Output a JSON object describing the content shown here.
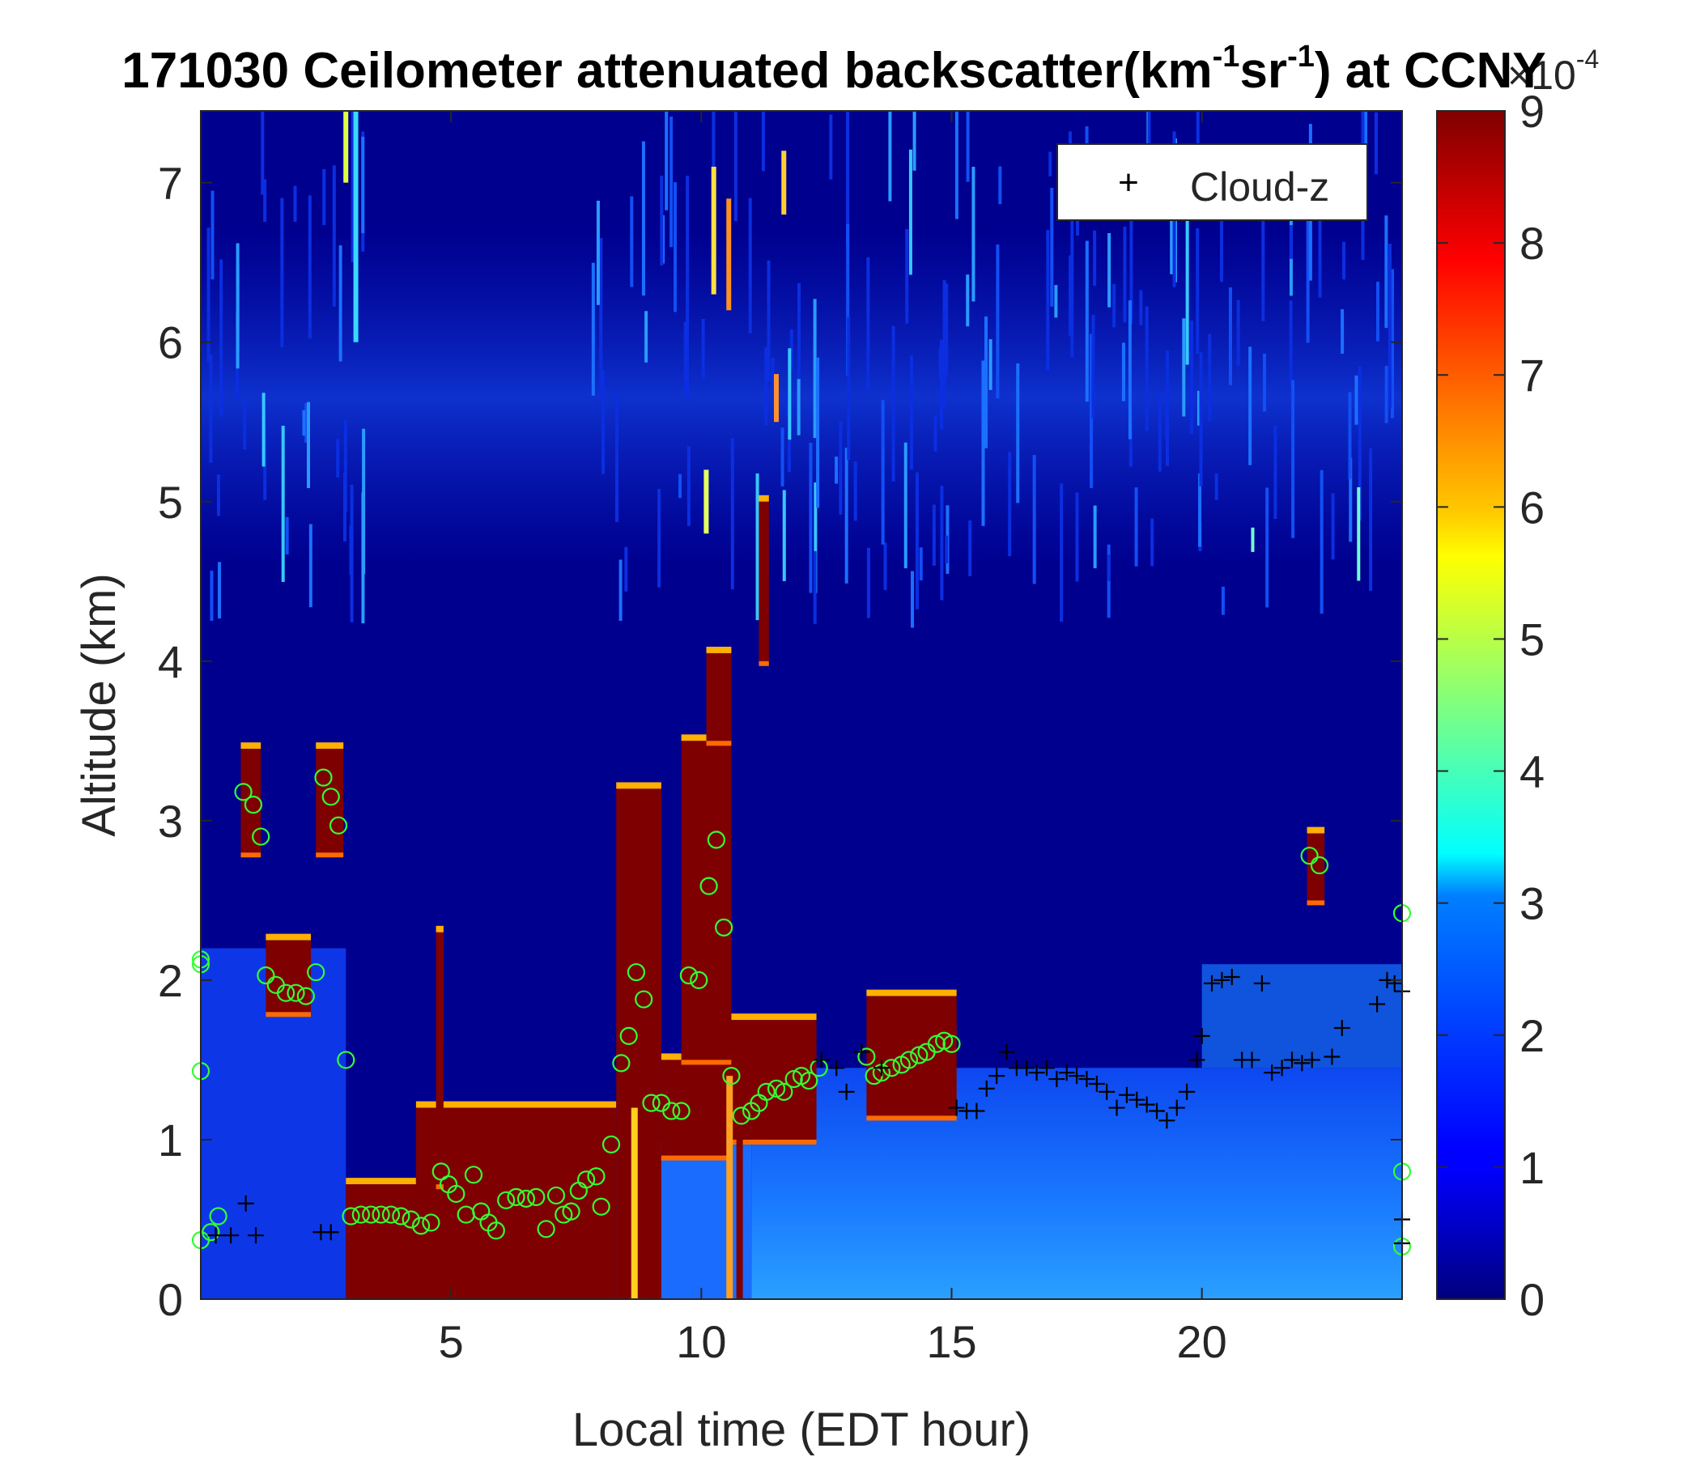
{
  "chart_data": {
    "type": "heatmap",
    "title": "171030 Ceilometer attenuated backscatter(km",
    "title_sup1": "-1",
    "title_mid": "sr",
    "title_sup2": "-1",
    "title_end": ") at CCNY",
    "xlabel": "Local time (EDT hour)",
    "ylabel": "Altitude (km)",
    "xlim": [
      0,
      24
    ],
    "ylim": [
      0,
      7.45
    ],
    "x_ticks": [
      5,
      10,
      15,
      20
    ],
    "x_tick_labels": [
      "5",
      "10",
      "15",
      "20"
    ],
    "y_ticks": [
      0,
      1,
      2,
      3,
      4,
      5,
      6,
      7
    ],
    "y_tick_labels": [
      "0",
      "1",
      "2",
      "3",
      "4",
      "5",
      "6",
      "7"
    ],
    "colorbar": {
      "colormap": "jet",
      "clim": [
        0,
        9
      ],
      "ticks": [
        0,
        1,
        2,
        3,
        4,
        5,
        6,
        7,
        8,
        9
      ],
      "tick_labels": [
        "0",
        "1",
        "2",
        "3",
        "4",
        "5",
        "6",
        "7",
        "8",
        "9"
      ],
      "multiplier": "×10",
      "multiplier_exp": "-4"
    },
    "legend": {
      "position": "top-right",
      "entries": [
        {
          "marker": "+",
          "label": "Cloud-z"
        }
      ]
    },
    "saturated_layers": [
      {
        "x": [
          0.8,
          1.2
        ],
        "bottom": 2.8,
        "top": 3.45
      },
      {
        "x": [
          1.3,
          2.2
        ],
        "bottom": 1.8,
        "top": 2.25
      },
      {
        "x": [
          2.3,
          2.85
        ],
        "bottom": 2.8,
        "top": 3.45
      },
      {
        "x": [
          2.9,
          4.3
        ],
        "bottom": 0.0,
        "top": 0.72
      },
      {
        "x": [
          4.3,
          8.3
        ],
        "bottom": 0.0,
        "top": 1.2
      },
      {
        "x": [
          4.7,
          4.85
        ],
        "bottom": 0.72,
        "top": 2.3
      },
      {
        "x": [
          8.3,
          9.2
        ],
        "bottom": 0.0,
        "top": 3.2
      },
      {
        "x": [
          9.2,
          10.6
        ],
        "bottom": 0.9,
        "top": 1.5
      },
      {
        "x": [
          9.6,
          10.6
        ],
        "bottom": 1.5,
        "top": 3.5
      },
      {
        "x": [
          10.1,
          10.6
        ],
        "bottom": 3.5,
        "top": 4.05
      },
      {
        "x": [
          11.15,
          11.35
        ],
        "bottom": 4.0,
        "top": 5.0
      },
      {
        "x": [
          10.6,
          12.3
        ],
        "bottom": 1.0,
        "top": 1.75
      },
      {
        "x": [
          13.3,
          15.1
        ],
        "bottom": 1.15,
        "top": 1.9
      },
      {
        "x": [
          22.1,
          22.45
        ],
        "bottom": 2.5,
        "top": 2.92
      }
    ],
    "cloud_z": [
      [
        0.3,
        0.4
      ],
      [
        0.6,
        0.4
      ],
      [
        0.9,
        0.6
      ],
      [
        1.1,
        0.4
      ],
      [
        2.4,
        0.42
      ],
      [
        2.6,
        0.42
      ],
      [
        12.4,
        1.5
      ],
      [
        12.7,
        1.45
      ],
      [
        12.9,
        1.3
      ],
      [
        13.2,
        1.55
      ],
      [
        13.6,
        1.45
      ],
      [
        15.1,
        1.2
      ],
      [
        15.3,
        1.18
      ],
      [
        15.5,
        1.18
      ],
      [
        15.7,
        1.32
      ],
      [
        15.9,
        1.4
      ],
      [
        16.1,
        1.55
      ],
      [
        16.3,
        1.45
      ],
      [
        16.5,
        1.45
      ],
      [
        16.7,
        1.42
      ],
      [
        16.9,
        1.45
      ],
      [
        17.1,
        1.38
      ],
      [
        17.3,
        1.42
      ],
      [
        17.5,
        1.4
      ],
      [
        17.7,
        1.38
      ],
      [
        17.9,
        1.35
      ],
      [
        18.1,
        1.3
      ],
      [
        18.3,
        1.2
      ],
      [
        18.5,
        1.28
      ],
      [
        18.7,
        1.25
      ],
      [
        18.9,
        1.22
      ],
      [
        19.1,
        1.18
      ],
      [
        19.3,
        1.12
      ],
      [
        19.5,
        1.2
      ],
      [
        19.7,
        1.3
      ],
      [
        19.9,
        1.5
      ],
      [
        20.0,
        1.65
      ],
      [
        20.2,
        1.98
      ],
      [
        20.4,
        2.0
      ],
      [
        20.6,
        2.02
      ],
      [
        20.8,
        1.5
      ],
      [
        21.0,
        1.5
      ],
      [
        21.2,
        1.98
      ],
      [
        21.4,
        1.42
      ],
      [
        21.6,
        1.45
      ],
      [
        21.8,
        1.5
      ],
      [
        22.0,
        1.48
      ],
      [
        22.2,
        1.5
      ],
      [
        22.6,
        1.52
      ],
      [
        22.8,
        1.7
      ],
      [
        23.5,
        1.85
      ],
      [
        23.7,
        2.0
      ],
      [
        23.85,
        1.98
      ],
      [
        24.0,
        1.93
      ],
      [
        24.0,
        0.5
      ],
      [
        24.0,
        0.35
      ]
    ],
    "aerosol_layer": [
      [
        0.0,
        0.37
      ],
      [
        0.2,
        0.42
      ],
      [
        0.35,
        0.52
      ],
      [
        0.85,
        3.18
      ],
      [
        1.05,
        3.1
      ],
      [
        1.2,
        2.9
      ],
      [
        1.3,
        2.03
      ],
      [
        1.5,
        1.97
      ],
      [
        1.7,
        1.92
      ],
      [
        1.9,
        1.92
      ],
      [
        2.1,
        1.9
      ],
      [
        2.3,
        2.05
      ],
      [
        2.45,
        3.27
      ],
      [
        2.6,
        3.15
      ],
      [
        2.75,
        2.97
      ],
      [
        2.9,
        1.5
      ],
      [
        3.0,
        0.52
      ],
      [
        3.2,
        0.53
      ],
      [
        3.4,
        0.53
      ],
      [
        3.6,
        0.53
      ],
      [
        3.8,
        0.53
      ],
      [
        4.0,
        0.52
      ],
      [
        4.2,
        0.5
      ],
      [
        4.4,
        0.46
      ],
      [
        4.6,
        0.48
      ],
      [
        4.8,
        0.8
      ],
      [
        4.95,
        0.72
      ],
      [
        5.1,
        0.66
      ],
      [
        5.3,
        0.53
      ],
      [
        5.45,
        0.78
      ],
      [
        5.6,
        0.55
      ],
      [
        5.75,
        0.48
      ],
      [
        5.9,
        0.43
      ],
      [
        6.1,
        0.62
      ],
      [
        6.3,
        0.64
      ],
      [
        6.5,
        0.63
      ],
      [
        6.7,
        0.64
      ],
      [
        6.9,
        0.44
      ],
      [
        7.1,
        0.65
      ],
      [
        7.25,
        0.53
      ],
      [
        7.4,
        0.55
      ],
      [
        7.55,
        0.68
      ],
      [
        7.7,
        0.75
      ],
      [
        7.9,
        0.77
      ],
      [
        8.0,
        0.58
      ],
      [
        8.2,
        0.97
      ],
      [
        8.4,
        1.48
      ],
      [
        8.55,
        1.65
      ],
      [
        8.7,
        2.05
      ],
      [
        8.85,
        1.88
      ],
      [
        9.0,
        1.23
      ],
      [
        9.2,
        1.23
      ],
      [
        9.4,
        1.18
      ],
      [
        9.6,
        1.18
      ],
      [
        9.75,
        2.03
      ],
      [
        9.95,
        2.0
      ],
      [
        10.15,
        2.59
      ],
      [
        10.3,
        2.88
      ],
      [
        10.45,
        2.33
      ],
      [
        10.6,
        1.4
      ],
      [
        10.8,
        1.15
      ],
      [
        11.0,
        1.18
      ],
      [
        11.15,
        1.23
      ],
      [
        11.3,
        1.3
      ],
      [
        11.5,
        1.32
      ],
      [
        11.65,
        1.3
      ],
      [
        11.85,
        1.38
      ],
      [
        12.0,
        1.4
      ],
      [
        12.15,
        1.37
      ],
      [
        12.35,
        1.45
      ],
      [
        13.3,
        1.52
      ],
      [
        13.45,
        1.4
      ],
      [
        13.6,
        1.42
      ],
      [
        13.8,
        1.45
      ],
      [
        14.0,
        1.47
      ],
      [
        14.15,
        1.5
      ],
      [
        14.35,
        1.53
      ],
      [
        14.5,
        1.55
      ],
      [
        14.7,
        1.6
      ],
      [
        14.85,
        1.62
      ],
      [
        15.0,
        1.6
      ],
      [
        22.15,
        2.78
      ],
      [
        22.35,
        2.72
      ],
      [
        24.0,
        2.42
      ],
      [
        24.0,
        0.8
      ],
      [
        24.0,
        0.33
      ],
      [
        0.0,
        2.1
      ],
      [
        0.0,
        1.43
      ],
      [
        0.0,
        2.13
      ]
    ]
  }
}
